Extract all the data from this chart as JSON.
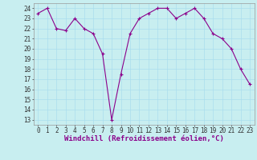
{
  "x": [
    0,
    1,
    2,
    3,
    4,
    5,
    6,
    7,
    8,
    9,
    10,
    11,
    12,
    13,
    14,
    15,
    16,
    17,
    18,
    19,
    20,
    21,
    22,
    23
  ],
  "y": [
    23.5,
    24.0,
    22.0,
    21.8,
    23.0,
    22.0,
    21.5,
    19.5,
    13.0,
    17.5,
    21.5,
    23.0,
    23.5,
    24.0,
    24.0,
    23.0,
    23.5,
    24.0,
    23.0,
    21.5,
    21.0,
    20.0,
    18.0,
    16.5
  ],
  "line_color": "#8B008B",
  "marker_color": "#8B008B",
  "bg_color": "#C8EEF0",
  "grid_color": "#AADDEE",
  "xlabel": "Windchill (Refroidissement éolien,°C)",
  "xlabel_color": "#8B008B",
  "ylabel_ticks": [
    13,
    14,
    15,
    16,
    17,
    18,
    19,
    20,
    21,
    22,
    23,
    24
  ],
  "xlim": [
    -0.5,
    23.5
  ],
  "ylim": [
    12.5,
    24.5
  ],
  "tick_fontsize": 5.5,
  "xlabel_fontsize": 6.5
}
